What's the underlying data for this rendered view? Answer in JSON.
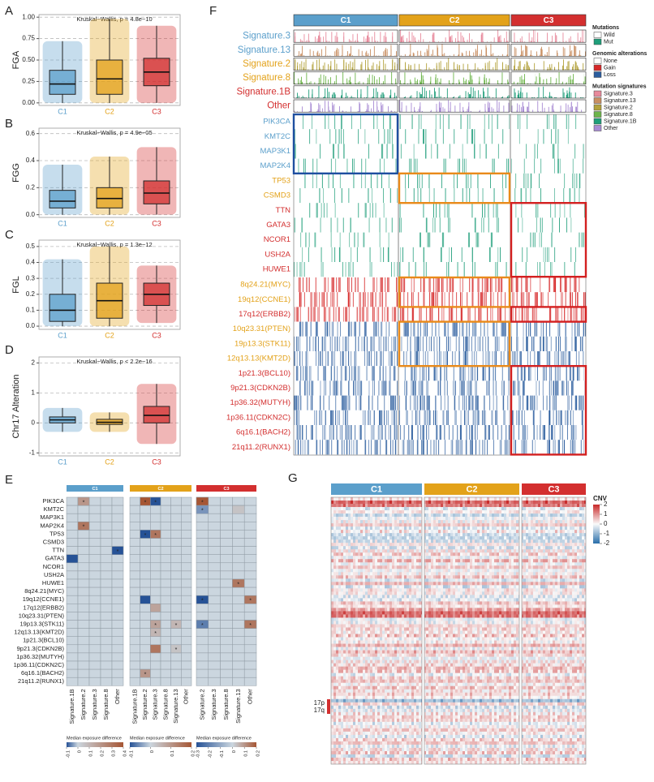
{
  "panel_letters": [
    "A",
    "B",
    "C",
    "D",
    "E",
    "F",
    "G"
  ],
  "chart_data": [
    {
      "type": "box",
      "ylabel": "FGA",
      "annotation": "Kruskal−Wallis, p = 4.8e−10",
      "categories": [
        "C1",
        "C2",
        "C3"
      ],
      "colors": [
        "#5b9fcb",
        "#e3a21a",
        "#d32f2f"
      ],
      "values": [
        {
          "min": 0,
          "q1": 0.1,
          "median": 0.22,
          "q3": 0.38,
          "max": 0.72
        },
        {
          "min": 0,
          "q1": 0.1,
          "median": 0.28,
          "q3": 0.5,
          "max": 0.98
        },
        {
          "min": 0,
          "q1": 0.2,
          "median": 0.36,
          "q3": 0.52,
          "max": 0.9
        }
      ],
      "ylim": [
        -0.03,
        1.03
      ],
      "yticks": [
        {
          "value": 0,
          "label": "0.00"
        },
        {
          "value": 0.25,
          "label": "0.25"
        },
        {
          "value": 0.5,
          "label": "0.50"
        },
        {
          "value": 0.75,
          "label": "0.75"
        },
        {
          "value": 1,
          "label": "1.00"
        }
      ],
      "grid": true
    },
    {
      "type": "box",
      "ylabel": "FGG",
      "annotation": "Kruskal−Wallis, p = 4.9e−05",
      "categories": [
        "C1",
        "C2",
        "C3"
      ],
      "colors": [
        "#5b9fcb",
        "#e3a21a",
        "#d32f2f"
      ],
      "values": [
        {
          "min": 0,
          "q1": 0.05,
          "median": 0.1,
          "q3": 0.18,
          "max": 0.37
        },
        {
          "min": 0,
          "q1": 0.05,
          "median": 0.12,
          "q3": 0.2,
          "max": 0.43
        },
        {
          "min": 0,
          "q1": 0.08,
          "median": 0.16,
          "q3": 0.25,
          "max": 0.5
        }
      ],
      "ylim": [
        -0.02,
        0.64
      ],
      "yticks": [
        {
          "value": 0,
          "label": "0.0"
        },
        0.2,
        0.4,
        0.6
      ],
      "grid": true
    },
    {
      "type": "box",
      "ylabel": "FGL",
      "annotation": "Kruskal−Wallis, p = 1.3e−12",
      "categories": [
        "C1",
        "C2",
        "C3"
      ],
      "colors": [
        "#5b9fcb",
        "#e3a21a",
        "#d32f2f"
      ],
      "values": [
        {
          "min": 0,
          "q1": 0.03,
          "median": 0.1,
          "q3": 0.2,
          "max": 0.42
        },
        {
          "min": 0,
          "q1": 0.05,
          "median": 0.16,
          "q3": 0.27,
          "max": 0.5
        },
        {
          "min": 0.02,
          "q1": 0.13,
          "median": 0.2,
          "q3": 0.27,
          "max": 0.38
        }
      ],
      "ylim": [
        -0.02,
        0.54
      ],
      "yticks": [
        {
          "value": 0,
          "label": "0.0"
        },
        0.1,
        0.2,
        0.3,
        0.4,
        0.5
      ],
      "grid": true
    },
    {
      "type": "box",
      "ylabel": "Chr17 Alteration",
      "annotation": "Kruskal−Wallis, p < 2.2e−16",
      "categories": [
        "C1",
        "C2",
        "C3"
      ],
      "colors": [
        "#5b9fcb",
        "#e3a21a",
        "#d32f2f"
      ],
      "values": [
        {
          "min": -0.3,
          "q1": 0,
          "median": 0.1,
          "q3": 0.2,
          "max": 0.5
        },
        {
          "min": -0.3,
          "q1": -0.05,
          "median": 0.02,
          "q3": 0.12,
          "max": 0.35
        },
        {
          "min": -0.7,
          "q1": 0,
          "median": 0.25,
          "q3": 0.55,
          "max": 1.3
        }
      ],
      "ylim": [
        -1.1,
        2.2
      ],
      "yticks": [
        -1,
        0,
        1,
        2
      ],
      "grid": true
    }
  ],
  "panel_e": {
    "rows": [
      "PIK3CA",
      "KMT2C",
      "MAP3K1",
      "MAP2K4",
      "TP53",
      "CSMD3",
      "TTN",
      "GATA3",
      "NCOR1",
      "USH2A",
      "HUWE1",
      "8q24.21(MYC)",
      "19q12(CCNE1)",
      "17q12(ERBB2)",
      "10q23.31(PTEN)",
      "19p13.3(STK11)",
      "12q13.13(KMT2D)",
      "1p21.3(BCL10)",
      "9p21.3(CDKN2B)",
      "1p36.32(MUTYH)",
      "1p36.11(CDKN2C)",
      "6q16.1(BACH2)",
      "21q11.2(RUNX1)"
    ],
    "sig_mark": "*",
    "legend_title": "Median exposure difference",
    "groups": [
      {
        "name": "C1",
        "color": "#5b9fcb",
        "columns": [
          "Signature.1B",
          "Signature.2",
          "Signature.3",
          "Signature.8",
          "Other"
        ],
        "scale_lim": [
          -0.1,
          0.4
        ],
        "scale_ticks": [
          -0.1,
          0,
          0.1,
          0.2,
          0.3,
          0.4
        ],
        "cells": [
          {
            "row": 0,
            "col": 1,
            "value": 0.2,
            "sig": true
          },
          {
            "row": 3,
            "col": 1,
            "value": 0.3,
            "sig": true
          },
          {
            "row": 6,
            "col": 4,
            "value": -0.1,
            "sig": true
          },
          {
            "row": 7,
            "col": 0,
            "value": -0.1,
            "sig": false
          }
        ]
      },
      {
        "name": "C2",
        "color": "#e3a21a",
        "columns": [
          "Signature.1B",
          "Signature.2",
          "Signature.3",
          "Signature.8",
          "Signature.13",
          "Other"
        ],
        "scale_lim": [
          -0.1,
          0.2
        ],
        "scale_ticks": [
          -0.1,
          0,
          0.1,
          0.2
        ],
        "cells": [
          {
            "row": 0,
            "col": 1,
            "value": 0.2,
            "sig": true
          },
          {
            "row": 0,
            "col": 2,
            "value": -0.1,
            "sig": true
          },
          {
            "row": 4,
            "col": 1,
            "value": -0.1,
            "sig": true
          },
          {
            "row": 4,
            "col": 2,
            "value": 0.15,
            "sig": true
          },
          {
            "row": 12,
            "col": 1,
            "value": -0.1,
            "sig": false
          },
          {
            "row": 13,
            "col": 2,
            "value": 0.08,
            "sig": false
          },
          {
            "row": 15,
            "col": 2,
            "value": 0.08,
            "sig": true
          },
          {
            "row": 15,
            "col": 4,
            "value": 0.05,
            "sig": true
          },
          {
            "row": 16,
            "col": 2,
            "value": 0.05,
            "sig": true
          },
          {
            "row": 18,
            "col": 2,
            "value": 0.15,
            "sig": false
          },
          {
            "row": 18,
            "col": 4,
            "value": 0.03,
            "sig": true
          },
          {
            "row": 21,
            "col": 1,
            "value": 0.1,
            "sig": true
          }
        ]
      },
      {
        "name": "C3",
        "color": "#d32f2f",
        "columns": [
          "Signature.2",
          "Signature.3",
          "Signature.8",
          "Signature.13",
          "Other"
        ],
        "scale_lim": [
          -0.3,
          0.2
        ],
        "scale_ticks": [
          -0.3,
          -0.2,
          -0.1,
          0,
          0.1,
          0.2
        ],
        "cells": [
          {
            "row": 0,
            "col": 0,
            "value": 0.2,
            "sig": true
          },
          {
            "row": 1,
            "col": 0,
            "value": -0.15,
            "sig": true
          },
          {
            "row": 1,
            "col": 3,
            "value": 0.03,
            "sig": false
          },
          {
            "row": 10,
            "col": 3,
            "value": 0.15,
            "sig": true
          },
          {
            "row": 12,
            "col": 0,
            "value": -0.3,
            "sig": true
          },
          {
            "row": 12,
            "col": 4,
            "value": 0.15,
            "sig": true
          },
          {
            "row": 15,
            "col": 0,
            "value": -0.2,
            "sig": true
          },
          {
            "row": 15,
            "col": 4,
            "value": 0.15,
            "sig": true
          }
        ]
      }
    ]
  },
  "panel_f": {
    "groups": [
      {
        "name": "C1",
        "color": "#5b9fcb"
      },
      {
        "name": "C2",
        "color": "#e3a21a"
      },
      {
        "name": "C3",
        "color": "#d32f2f"
      }
    ],
    "signature_rows": [
      {
        "label": "Signature.3",
        "color": "#5b9fcb",
        "bar_color": "#e88a9c"
      },
      {
        "label": "Signature.13",
        "color": "#5b9fcb",
        "bar_color": "#c98f62"
      },
      {
        "label": "Signature.2",
        "color": "#e3a21a",
        "bar_color": "#b3a23c"
      },
      {
        "label": "Signature.8",
        "color": "#e3a21a",
        "bar_color": "#6db54a"
      },
      {
        "label": "Signature.1B",
        "color": "#d32f2f",
        "bar_color": "#1f9e7a"
      },
      {
        "label": "Other",
        "color": "#d32f2f",
        "bar_color": "#a88bd4"
      }
    ],
    "mutation_rows": [
      {
        "label": "PIK3CA",
        "color": "#5b9fcb"
      },
      {
        "label": "KMT2C",
        "color": "#5b9fcb"
      },
      {
        "label": "MAP3K1",
        "color": "#5b9fcb"
      },
      {
        "label": "MAP2K4",
        "color": "#5b9fcb"
      },
      {
        "label": "TP53",
        "color": "#e3a21a"
      },
      {
        "label": "CSMD3",
        "color": "#e3a21a"
      },
      {
        "label": "TTN",
        "color": "#d32f2f"
      },
      {
        "label": "GATA3",
        "color": "#d32f2f"
      },
      {
        "label": "NCOR1",
        "color": "#d32f2f"
      },
      {
        "label": "USH2A",
        "color": "#d32f2f"
      },
      {
        "label": "HUWE1",
        "color": "#d32f2f"
      }
    ],
    "cnv_rows": [
      {
        "label": "8q24.21(MYC)",
        "color": "#e3a21a",
        "alteration": "gain"
      },
      {
        "label": "19q12(CCNE1)",
        "color": "#e3a21a",
        "alteration": "gain"
      },
      {
        "label": "17q12(ERBB2)",
        "color": "#d32f2f",
        "alteration": "gain"
      },
      {
        "label": "10q23.31(PTEN)",
        "color": "#e3a21a",
        "alteration": "loss"
      },
      {
        "label": "19p13.3(STK11)",
        "color": "#e3a21a",
        "alteration": "loss"
      },
      {
        "label": "12q13.13(KMT2D)",
        "color": "#e3a21a",
        "alteration": "loss"
      },
      {
        "label": "1p21.3(BCL10)",
        "color": "#d32f2f",
        "alteration": "loss"
      },
      {
        "label": "9p21.3(CDKN2B)",
        "color": "#d32f2f",
        "alteration": "loss"
      },
      {
        "label": "1p36.32(MUTYH)",
        "color": "#d32f2f",
        "alteration": "loss"
      },
      {
        "label": "1p36.11(CDKN2C)",
        "color": "#d32f2f",
        "alteration": "loss"
      },
      {
        "label": "6q16.1(BACH2)",
        "color": "#d32f2f",
        "alteration": "loss"
      },
      {
        "label": "21q11.2(RUNX1)",
        "color": "#d32f2f",
        "alteration": "loss"
      }
    ],
    "legends": [
      {
        "title": "Mutations",
        "items": [
          {
            "label": "Wild",
            "color": "#ffffff"
          },
          {
            "label": "Mut",
            "color": "#1f9e7a"
          }
        ]
      },
      {
        "title": "Genomic alterations",
        "items": [
          {
            "label": "None",
            "color": "#ffffff"
          },
          {
            "label": "Gain",
            "color": "#d62728"
          },
          {
            "label": "Loss",
            "color": "#2b5d9e"
          }
        ]
      },
      {
        "title": "Mutation signatures",
        "items": [
          {
            "label": "Signature.3",
            "color": "#e88a9c"
          },
          {
            "label": "Signature.13",
            "color": "#c98f62"
          },
          {
            "label": "Signature.2",
            "color": "#b3a23c"
          },
          {
            "label": "Signature.8",
            "color": "#6db54a"
          },
          {
            "label": "Signature.1B",
            "color": "#1f9e7a"
          },
          {
            "label": "Other",
            "color": "#a88bd4"
          }
        ]
      }
    ]
  },
  "panel_g": {
    "groups": [
      {
        "name": "C1",
        "color": "#5b9fcb"
      },
      {
        "name": "C2",
        "color": "#e3a21a"
      },
      {
        "name": "C3",
        "color": "#d32f2f"
      }
    ],
    "legend_title": "CNV",
    "legend_lim": [
      -2,
      2
    ],
    "legend_ticks": [
      2,
      1,
      0,
      -1,
      -2
    ],
    "arm_labels": [
      "17p",
      "17q"
    ]
  }
}
